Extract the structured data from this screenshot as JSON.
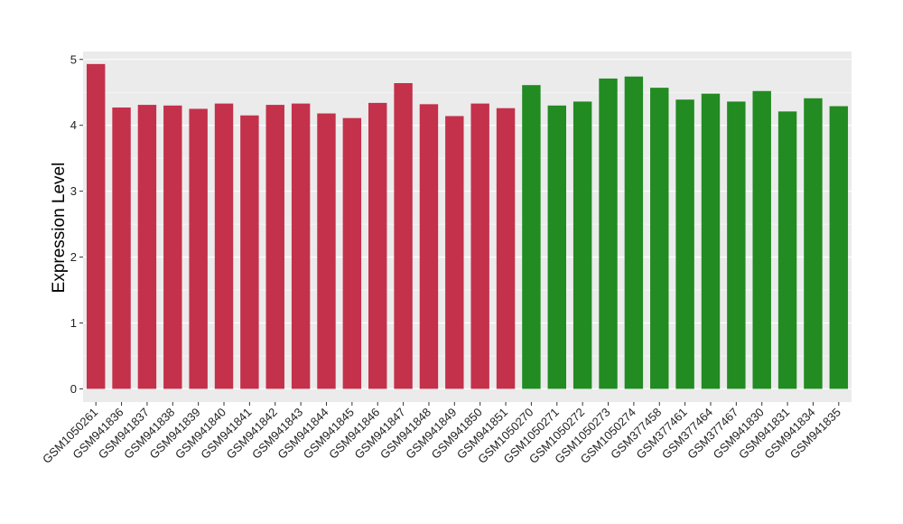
{
  "chart_data": {
    "type": "bar",
    "ylabel": "Expression Level",
    "xlabel": "",
    "ylim": [
      -0.2,
      5.12
    ],
    "yticks": [
      0,
      1,
      2,
      3,
      4,
      5
    ],
    "grid": true,
    "legend": "none",
    "categories": [
      "GSM1050261",
      "GSM941836",
      "GSM941837",
      "GSM941838",
      "GSM941839",
      "GSM941840",
      "GSM941841",
      "GSM941842",
      "GSM941843",
      "GSM941844",
      "GSM941845",
      "GSM941846",
      "GSM941847",
      "GSM941848",
      "GSM941849",
      "GSM941850",
      "GSM941851",
      "GSM1050270",
      "GSM1050271",
      "GSM1050272",
      "GSM1050273",
      "GSM1050274",
      "GSM377458",
      "GSM377461",
      "GSM377464",
      "GSM377467",
      "GSM941830",
      "GSM941831",
      "GSM941834",
      "GSM941835"
    ],
    "values": [
      4.93,
      4.27,
      4.31,
      4.3,
      4.25,
      4.33,
      4.15,
      4.31,
      4.33,
      4.18,
      4.11,
      4.34,
      4.64,
      4.32,
      4.14,
      4.33,
      4.26,
      4.61,
      4.3,
      4.36,
      4.71,
      4.74,
      4.57,
      4.39,
      4.48,
      4.36,
      4.52,
      4.21,
      4.41,
      4.29
    ],
    "colors": [
      "#c4314b",
      "#c4314b",
      "#c4314b",
      "#c4314b",
      "#c4314b",
      "#c4314b",
      "#c4314b",
      "#c4314b",
      "#c4314b",
      "#c4314b",
      "#c4314b",
      "#c4314b",
      "#c4314b",
      "#c4314b",
      "#c4314b",
      "#c4314b",
      "#c4314b",
      "#228b22",
      "#228b22",
      "#228b22",
      "#228b22",
      "#228b22",
      "#228b22",
      "#228b22",
      "#228b22",
      "#228b22",
      "#228b22",
      "#228b22",
      "#228b22",
      "#228b22"
    ],
    "panel_background": "#ebebeb",
    "grid_color": "#ffffff"
  }
}
